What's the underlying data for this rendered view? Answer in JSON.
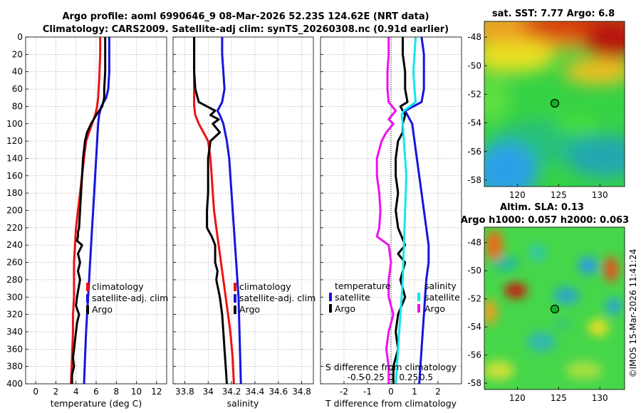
{
  "header": {
    "title_line1": "Argo profile: aoml 6990646_9 08-Mar-2026 52.23S 124.62E (NRT data)",
    "title_line2": "Climatology: CARS2009. Satellite-adj clim: synTS_20260308.nc (0.91d earlier)"
  },
  "legend": {
    "climatology": "climatology",
    "satellite_adj": "satellite-adj. clim",
    "argo": "Argo",
    "temperature_hdr": "temperature",
    "salinity_hdr": "salinity",
    "satellite": "satellite"
  },
  "colors": {
    "clim": "#ee1111",
    "sat": "#1515dd",
    "argo": "#000000",
    "sal_sat": "#11e8ee",
    "sal_argo": "#ee11ee"
  },
  "map1": {
    "title": "sat. SST: 7.77 Argo: 6.8",
    "xticks": [
      120,
      125,
      130
    ],
    "yticks": [
      -48,
      -50,
      -52,
      -54,
      -56,
      -58
    ]
  },
  "map2": {
    "title_line1": "Altim. SLA: 0.13",
    "title_line2": "Argo h1000: 0.057 h2000: 0.063",
    "xticks": [
      120,
      125,
      130
    ],
    "yticks": [
      -48,
      -50,
      -52,
      -54,
      -56,
      -58
    ]
  },
  "stamp": "©IMOS 15-Mar-2026 11:41:24",
  "chart_data": [
    {
      "type": "line",
      "name": "temperature_profile",
      "xlabel": "temperature (deg C)",
      "ylabel": "",
      "xlim": [
        -1,
        13
      ],
      "ylim": [
        400,
        0
      ],
      "xticks": [
        0,
        2,
        4,
        6,
        8,
        10,
        12
      ],
      "yticks": [
        0,
        20,
        40,
        60,
        80,
        100,
        120,
        140,
        160,
        180,
        200,
        220,
        240,
        260,
        280,
        300,
        320,
        340,
        360,
        380,
        400
      ],
      "series": [
        {
          "name": "climatology",
          "color": "#ee1111",
          "x": [
            6.4,
            6.4,
            6.3,
            6.2,
            6.1,
            5.9,
            5.6,
            5.3,
            5.0,
            4.8,
            4.6,
            4.4,
            4.2,
            4.0,
            3.9,
            3.8,
            3.8,
            3.8,
            3.7,
            3.7,
            3.6,
            3.5
          ],
          "y": [
            0,
            20,
            50,
            70,
            80,
            90,
            100,
            110,
            120,
            140,
            160,
            180,
            200,
            220,
            240,
            260,
            280,
            300,
            320,
            340,
            370,
            400
          ]
        },
        {
          "name": "satellite-adj. clim",
          "color": "#1515dd",
          "x": [
            7.3,
            7.3,
            7.3,
            7.2,
            7.0,
            6.5,
            6.3,
            6.2,
            6.1,
            6.0,
            5.9,
            5.8,
            5.7,
            5.6,
            5.5,
            5.4,
            5.3,
            5.2,
            5.1,
            5.0,
            4.9,
            4.8
          ],
          "y": [
            0,
            20,
            40,
            60,
            70,
            80,
            90,
            100,
            120,
            140,
            160,
            180,
            200,
            220,
            240,
            260,
            280,
            300,
            320,
            340,
            370,
            400
          ]
        },
        {
          "name": "Argo",
          "color": "#000000",
          "x": [
            6.9,
            6.9,
            6.9,
            6.8,
            6.8,
            6.6,
            6.3,
            6.0,
            5.5,
            5.1,
            4.9,
            4.8,
            4.7,
            4.6,
            4.5,
            4.4,
            4.3,
            4.2,
            4.2,
            4.1,
            4.6,
            4.2,
            4.4,
            4.2,
            4.4,
            4.1,
            4.0,
            4.3,
            4.1,
            4.0,
            3.9,
            3.8,
            3.7,
            3.8,
            3.6,
            3.6
          ],
          "y": [
            0,
            20,
            40,
            60,
            70,
            80,
            85,
            90,
            100,
            110,
            120,
            130,
            140,
            160,
            180,
            200,
            220,
            225,
            230,
            235,
            240,
            250,
            260,
            270,
            280,
            300,
            310,
            320,
            330,
            340,
            350,
            360,
            370,
            380,
            390,
            400
          ]
        }
      ]
    },
    {
      "type": "line",
      "name": "salinity_profile",
      "xlabel": "salinity",
      "ylabel": "",
      "xlim": [
        33.7,
        34.9
      ],
      "ylim": [
        400,
        0
      ],
      "xticks": [
        33.8,
        34,
        34.2,
        34.4,
        34.6,
        34.8
      ],
      "series": [
        {
          "name": "climatology",
          "color": "#ee1111",
          "x": [
            33.88,
            33.88,
            33.88,
            33.89,
            33.92,
            33.96,
            34.0,
            34.02,
            34.03,
            34.04,
            34.05,
            34.07,
            34.09,
            34.11,
            34.13,
            34.15,
            34.17,
            34.19,
            34.21,
            34.22
          ],
          "y": [
            0,
            40,
            80,
            90,
            100,
            110,
            120,
            140,
            160,
            180,
            200,
            220,
            240,
            260,
            280,
            300,
            320,
            340,
            370,
            400
          ]
        },
        {
          "name": "satellite-adj. clim",
          "color": "#1515dd",
          "x": [
            34.12,
            34.12,
            34.13,
            34.14,
            34.12,
            34.08,
            34.1,
            34.13,
            34.16,
            34.18,
            34.19,
            34.2,
            34.21,
            34.22,
            34.23,
            34.24,
            34.25,
            34.26,
            34.27,
            34.28
          ],
          "y": [
            0,
            20,
            40,
            60,
            75,
            85,
            90,
            100,
            120,
            140,
            160,
            180,
            200,
            220,
            240,
            260,
            280,
            300,
            350,
            400
          ]
        },
        {
          "name": "Argo",
          "color": "#000000",
          "x": [
            33.88,
            33.88,
            33.88,
            33.89,
            33.92,
            33.99,
            34.06,
            34.02,
            34.09,
            34.04,
            34.1,
            34.02,
            34.01,
            34.0,
            34.0,
            34.0,
            33.99,
            33.99,
            34.03,
            34.06,
            34.06,
            34.08,
            34.07,
            34.1,
            34.11,
            34.12,
            34.13,
            34.14,
            34.15,
            34.16
          ],
          "y": [
            0,
            20,
            40,
            60,
            75,
            80,
            85,
            90,
            95,
            100,
            110,
            120,
            130,
            140,
            160,
            180,
            200,
            220,
            230,
            240,
            260,
            270,
            280,
            300,
            310,
            320,
            340,
            360,
            380,
            400
          ]
        }
      ]
    },
    {
      "type": "line",
      "name": "difference_profile",
      "xlabel": "T difference from climatology",
      "ylabel": "",
      "xlim": [
        -3,
        3
      ],
      "ylim": [
        400,
        0
      ],
      "xticks": [
        -2,
        -1,
        0,
        1,
        2
      ],
      "s_axis_label": "S difference from climatology",
      "s_xticks": [
        -0.5,
        -0.25,
        0,
        0.25,
        0.5
      ],
      "s_xticklabels": [
        "-0.5",
        "-0.25",
        "0",
        "0.25",
        "0.5"
      ],
      "series": [
        {
          "name": "temperature satellite",
          "color": "#1515dd",
          "x": [
            1.3,
            1.4,
            1.4,
            1.4,
            1.3,
            0.6,
            0.7,
            0.9,
            1.0,
            1.1,
            1.2,
            1.3,
            1.4,
            1.5,
            1.6,
            1.6,
            1.5,
            1.4,
            1.3,
            1.2
          ],
          "y": [
            0,
            20,
            40,
            60,
            75,
            85,
            90,
            100,
            120,
            140,
            160,
            180,
            200,
            220,
            240,
            260,
            280,
            320,
            360,
            400
          ]
        },
        {
          "name": "temperature Argo",
          "color": "#000000",
          "x": [
            0.5,
            0.5,
            0.6,
            0.6,
            0.7,
            0.4,
            0.6,
            0.5,
            0.5,
            0.3,
            0.2,
            0.2,
            0.3,
            0.2,
            0.3,
            0.6,
            0.3,
            0.6,
            0.4,
            0.6,
            0.3,
            0.2,
            0.3,
            0.1,
            0.1
          ],
          "y": [
            0,
            20,
            40,
            60,
            75,
            80,
            90,
            100,
            110,
            120,
            140,
            160,
            180,
            200,
            220,
            240,
            250,
            260,
            280,
            300,
            320,
            340,
            360,
            380,
            400
          ]
        },
        {
          "name": "salinity satellite",
          "color": "#11e8ee",
          "x": [
            1.05,
            1.0,
            0.95,
            1.0,
            1.05,
            0.55,
            0.45,
            0.5,
            0.55,
            0.6,
            0.65,
            0.6,
            0.55,
            0.5,
            0.45,
            0.4,
            0.35,
            0.3,
            0.25,
            0.2
          ],
          "y": [
            0,
            20,
            40,
            60,
            75,
            85,
            90,
            100,
            120,
            140,
            160,
            200,
            240,
            280,
            300,
            320,
            340,
            360,
            380,
            400
          ]
        },
        {
          "name": "salinity Argo",
          "color": "#ee11ee",
          "x": [
            -0.1,
            -0.1,
            -0.15,
            -0.15,
            -0.1,
            0.2,
            -0.1,
            0.1,
            -0.2,
            -0.4,
            -0.6,
            -0.6,
            -0.5,
            -0.45,
            -0.5,
            -0.6,
            -0.1,
            0.0,
            -0.1,
            -0.1,
            0.1,
            -0.1,
            -0.2,
            -0.1,
            -0.1
          ],
          "y": [
            0,
            20,
            40,
            60,
            75,
            85,
            95,
            100,
            110,
            120,
            140,
            160,
            180,
            200,
            220,
            230,
            240,
            260,
            280,
            300,
            320,
            340,
            360,
            380,
            400
          ]
        }
      ]
    }
  ]
}
